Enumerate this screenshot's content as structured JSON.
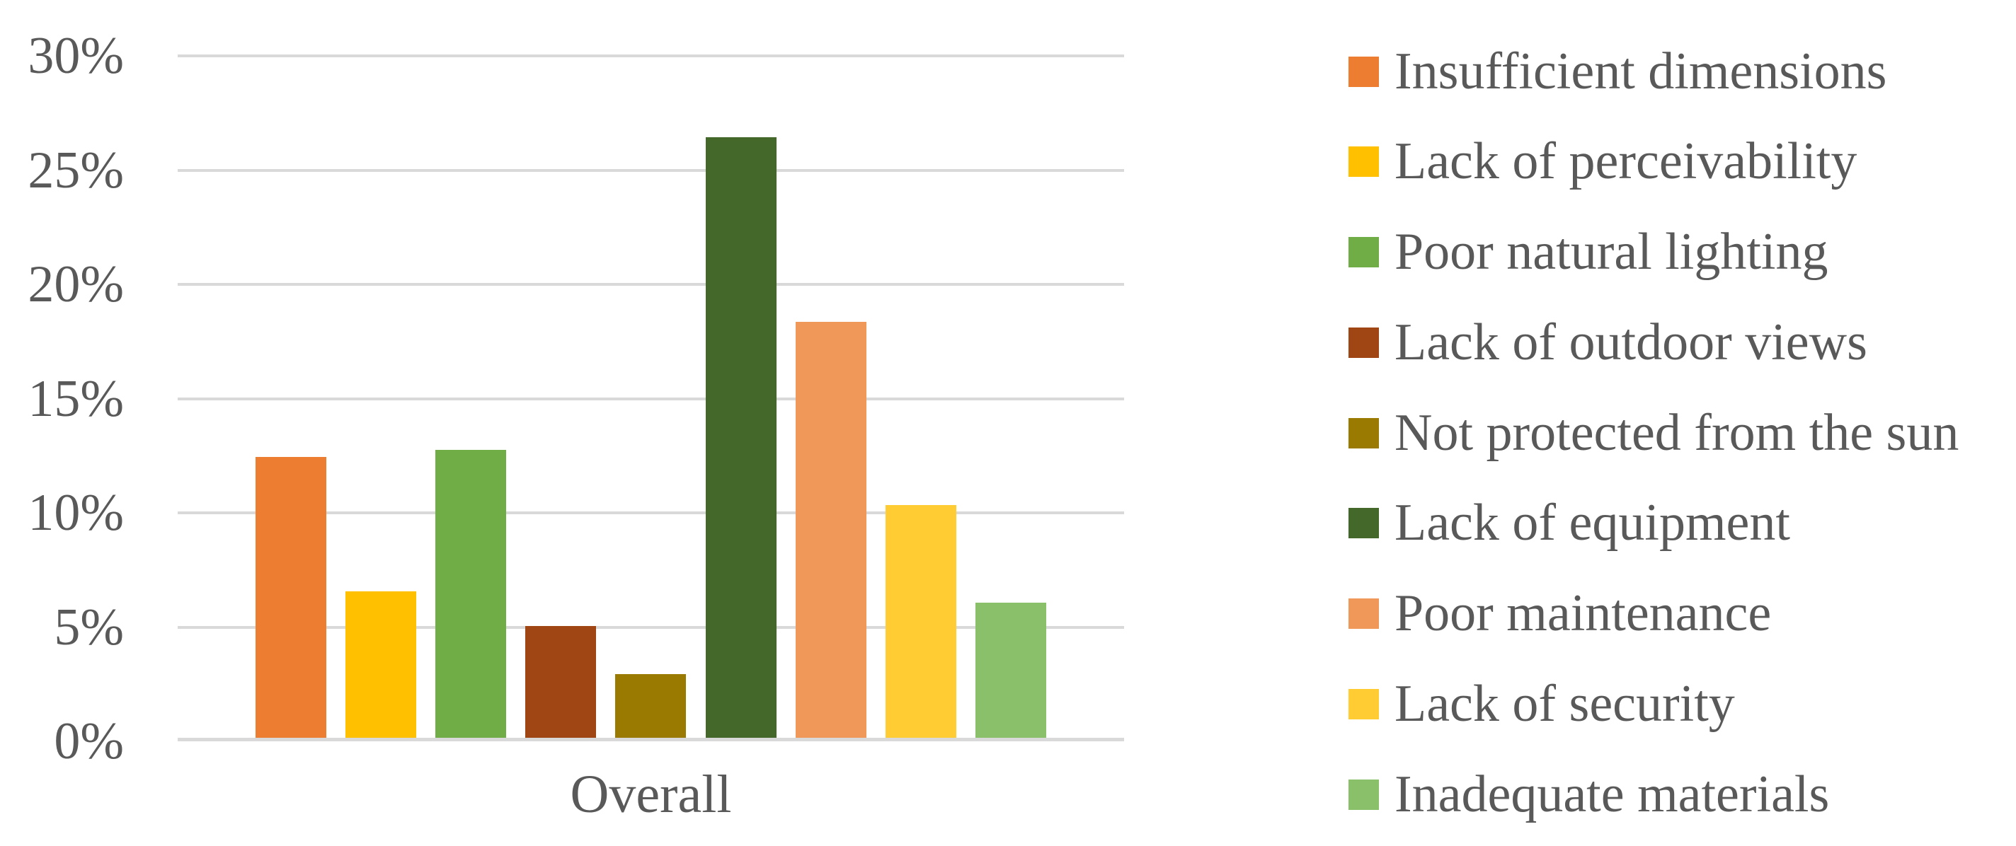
{
  "chart_data": {
    "type": "bar",
    "title": "",
    "categories": [
      "Overall"
    ],
    "xlabel_category": "Overall",
    "series": [
      {
        "name": "Insufficient dimensions",
        "color": "#ED7D31",
        "value": 12.3
      },
      {
        "name": "Lack of perceivability",
        "color": "#FFC000",
        "value": 6.4
      },
      {
        "name": "Poor natural lighting",
        "color": "#70AD47",
        "value": 12.6
      },
      {
        "name": "Lack of outdoor views",
        "color": "#A04514",
        "value": 4.9
      },
      {
        "name": "Not protected from the sun",
        "color": "#9A7A00",
        "value": 2.8
      },
      {
        "name": "Lack of equipment",
        "color": "#44672A",
        "value": 26.3
      },
      {
        "name": "Poor maintenance",
        "color": "#F0975A",
        "value": 18.2
      },
      {
        "name": "Lack of security",
        "color": "#FFCC33",
        "value": 10.2
      },
      {
        "name": "Inadequate materials",
        "color": "#8BC06A",
        "value": 5.9
      }
    ],
    "y_axis": {
      "min": 0,
      "max": 30,
      "step": 5,
      "tick_values": [
        0,
        5,
        10,
        15,
        20,
        25,
        30
      ],
      "tick_labels": [
        "0%",
        "5%",
        "10%",
        "15%",
        "20%",
        "25%",
        "30%"
      ]
    },
    "grid": true,
    "legend_position": "right",
    "colors": {
      "axis_text": "#595959",
      "gridline": "#D9D9D9",
      "background": "#FFFFFF"
    }
  }
}
